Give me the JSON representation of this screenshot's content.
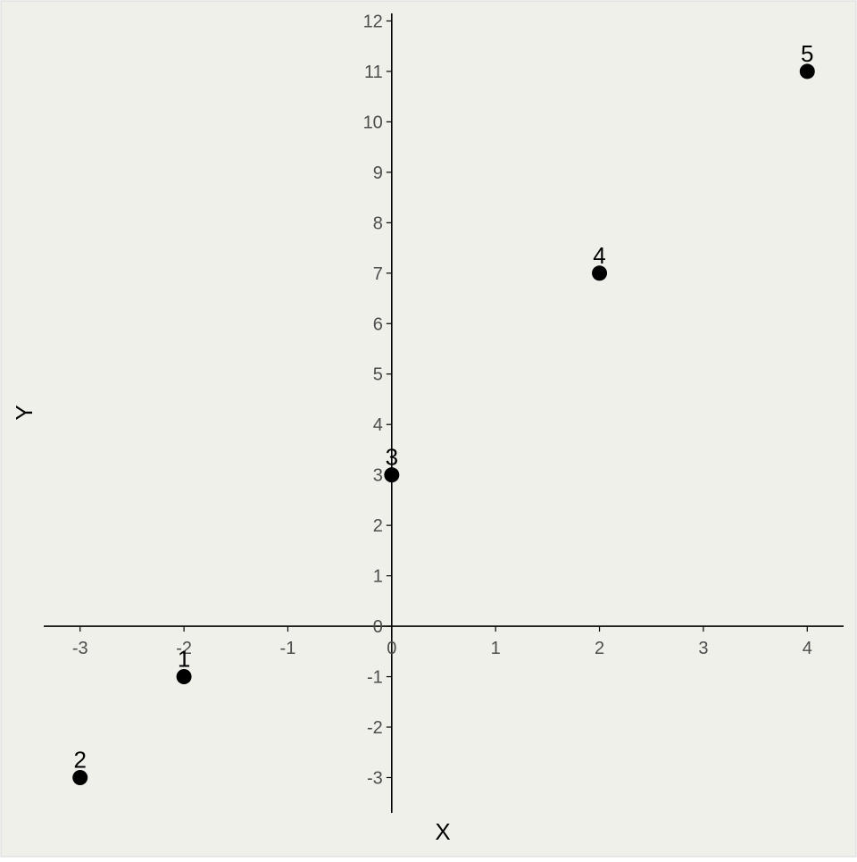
{
  "chart_data": {
    "type": "scatter",
    "title": "",
    "xlabel": "X",
    "ylabel": "Y",
    "xlim": [
      -3.35,
      4.35
    ],
    "ylim": [
      -3.7,
      12.15
    ],
    "x_ticks": [
      -3,
      -2,
      -1,
      0,
      1,
      2,
      3,
      4
    ],
    "y_ticks": [
      -3,
      -2,
      -1,
      0,
      1,
      2,
      3,
      4,
      5,
      6,
      7,
      8,
      9,
      10,
      11,
      12
    ],
    "grid": false,
    "axes_through_origin": true,
    "points": [
      {
        "label": "1",
        "x": -2,
        "y": -1
      },
      {
        "label": "2",
        "x": -3,
        "y": -3
      },
      {
        "label": "3",
        "x": 0,
        "y": 3
      },
      {
        "label": "4",
        "x": 2,
        "y": 7
      },
      {
        "label": "5",
        "x": 4,
        "y": 11
      }
    ]
  },
  "colors": {
    "panel_background": "#f0f0eb",
    "border": "#d9d9d9",
    "axis": "#000000",
    "point": "#000000",
    "tick_text": "#4d4d4d"
  }
}
